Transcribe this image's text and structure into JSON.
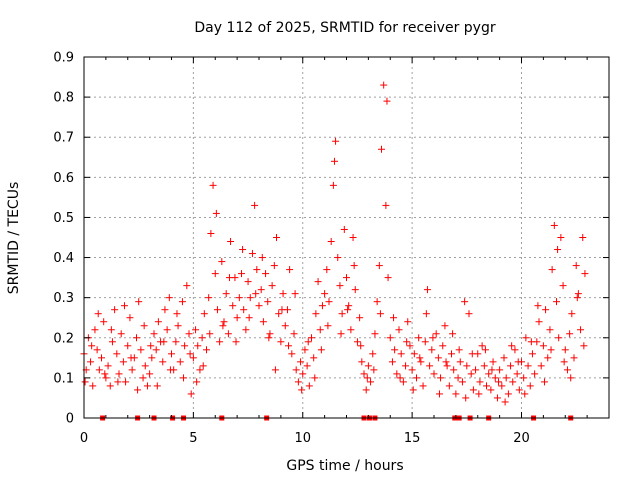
{
  "chart_data": {
    "type": "scatter",
    "title": "Day 112 of 2025, SRMTID for receiver pygr",
    "xlabel": "GPS time / hours",
    "ylabel": "SRMTID / TECUs",
    "xlim": [
      0,
      24
    ],
    "ylim": [
      0,
      0.9
    ],
    "xticks": [
      0,
      5,
      10,
      15,
      20
    ],
    "xtick_labels": [
      "0",
      "5",
      "10",
      "15",
      "20"
    ],
    "yticks": [
      0,
      0.1,
      0.2,
      0.3,
      0.4,
      0.5,
      0.6,
      0.7,
      0.8,
      0.9
    ],
    "ytick_labels": [
      "0",
      "0.1",
      "0.2",
      "0.3",
      "0.4",
      "0.5",
      "0.6",
      "0.7",
      "0.8",
      "0.9"
    ],
    "grid": true,
    "marker": "+",
    "color": "#ff0000",
    "series": [
      {
        "name": "SRMTID",
        "points": [
          [
            0.0,
            0.16
          ],
          [
            0.1,
            0.12
          ],
          [
            0.2,
            0.2
          ],
          [
            0.3,
            0.14
          ],
          [
            0.4,
            0.08
          ],
          [
            0.5,
            0.22
          ],
          [
            0.6,
            0.17
          ],
          [
            0.7,
            0.12
          ],
          [
            0.8,
            0.15
          ],
          [
            0.9,
            0.24
          ],
          [
            1.0,
            0.1
          ],
          [
            1.1,
            0.13
          ],
          [
            1.2,
            0.08
          ],
          [
            1.3,
            0.19
          ],
          [
            1.4,
            0.27
          ],
          [
            1.5,
            0.16
          ],
          [
            1.6,
            0.11
          ],
          [
            1.7,
            0.21
          ],
          [
            1.8,
            0.14
          ],
          [
            1.9,
            0.09
          ],
          [
            2.0,
            0.18
          ],
          [
            2.1,
            0.25
          ],
          [
            2.2,
            0.12
          ],
          [
            2.3,
            0.15
          ],
          [
            2.4,
            0.2
          ],
          [
            2.5,
            0.29
          ],
          [
            2.6,
            0.17
          ],
          [
            2.7,
            0.1
          ],
          [
            2.8,
            0.13
          ],
          [
            2.9,
            0.08
          ],
          [
            3.0,
            0.11
          ],
          [
            3.1,
            0.15
          ],
          [
            3.2,
            0.21
          ],
          [
            3.3,
            0.17
          ],
          [
            3.4,
            0.24
          ],
          [
            3.5,
            0.19
          ],
          [
            3.6,
            0.14
          ],
          [
            3.7,
            0.27
          ],
          [
            3.8,
            0.22
          ],
          [
            3.9,
            0.3
          ],
          [
            4.0,
            0.16
          ],
          [
            4.1,
            0.12
          ],
          [
            4.2,
            0.19
          ],
          [
            4.3,
            0.23
          ],
          [
            4.4,
            0.14
          ],
          [
            4.5,
            0.29
          ],
          [
            4.6,
            0.18
          ],
          [
            4.7,
            0.33
          ],
          [
            4.8,
            0.21
          ],
          [
            4.9,
            0.06
          ],
          [
            5.0,
            0.15
          ],
          [
            5.1,
            0.22
          ],
          [
            5.2,
            0.18
          ],
          [
            5.3,
            0.12
          ],
          [
            5.4,
            0.2
          ],
          [
            5.5,
            0.26
          ],
          [
            5.6,
            0.17
          ],
          [
            5.7,
            0.3
          ],
          [
            5.8,
            0.46
          ],
          [
            5.9,
            0.58
          ],
          [
            6.0,
            0.36
          ],
          [
            6.1,
            0.27
          ],
          [
            6.2,
            0.19
          ],
          [
            6.3,
            0.39
          ],
          [
            6.4,
            0.24
          ],
          [
            6.5,
            0.31
          ],
          [
            6.6,
            0.21
          ],
          [
            6.7,
            0.44
          ],
          [
            6.8,
            0.28
          ],
          [
            6.9,
            0.35
          ],
          [
            7.0,
            0.25
          ],
          [
            7.1,
            0.3
          ],
          [
            7.2,
            0.36
          ],
          [
            7.3,
            0.27
          ],
          [
            7.4,
            0.22
          ],
          [
            7.5,
            0.34
          ],
          [
            7.6,
            0.3
          ],
          [
            7.7,
            0.41
          ],
          [
            7.8,
            0.53
          ],
          [
            7.9,
            0.37
          ],
          [
            8.0,
            0.28
          ],
          [
            8.1,
            0.32
          ],
          [
            8.2,
            0.24
          ],
          [
            8.3,
            0.36
          ],
          [
            8.4,
            0.29
          ],
          [
            8.5,
            0.21
          ],
          [
            8.6,
            0.33
          ],
          [
            8.7,
            0.38
          ],
          [
            8.8,
            0.45
          ],
          [
            8.9,
            0.26
          ],
          [
            9.0,
            0.19
          ],
          [
            9.1,
            0.31
          ],
          [
            9.2,
            0.23
          ],
          [
            9.3,
            0.27
          ],
          [
            9.4,
            0.37
          ],
          [
            9.5,
            0.16
          ],
          [
            9.6,
            0.21
          ],
          [
            9.7,
            0.12
          ],
          [
            9.8,
            0.09
          ],
          [
            9.9,
            0.14
          ],
          [
            10.0,
            0.11
          ],
          [
            10.1,
            0.17
          ],
          [
            10.2,
            0.13
          ],
          [
            10.3,
            0.08
          ],
          [
            10.4,
            0.2
          ],
          [
            10.5,
            0.15
          ],
          [
            10.6,
            0.26
          ],
          [
            10.7,
            0.34
          ],
          [
            10.8,
            0.22
          ],
          [
            10.9,
            0.28
          ],
          [
            11.0,
            0.31
          ],
          [
            11.1,
            0.37
          ],
          [
            11.2,
            0.29
          ],
          [
            11.3,
            0.44
          ],
          [
            11.4,
            0.58
          ],
          [
            11.5,
            0.69
          ],
          [
            11.6,
            0.4
          ],
          [
            11.7,
            0.33
          ],
          [
            11.8,
            0.26
          ],
          [
            11.9,
            0.47
          ],
          [
            12.0,
            0.35
          ],
          [
            12.1,
            0.28
          ],
          [
            12.2,
            0.22
          ],
          [
            12.3,
            0.45
          ],
          [
            12.4,
            0.32
          ],
          [
            12.5,
            0.19
          ],
          [
            12.6,
            0.25
          ],
          [
            12.7,
            0.14
          ],
          [
            12.8,
            0.11
          ],
          [
            12.9,
            0.07
          ],
          [
            13.0,
            0.13
          ],
          [
            13.1,
            0.09
          ],
          [
            13.2,
            0.16
          ],
          [
            13.3,
            0.21
          ],
          [
            13.4,
            0.29
          ],
          [
            13.5,
            0.38
          ],
          [
            13.6,
            0.67
          ],
          [
            13.7,
            0.83
          ],
          [
            13.8,
            0.53
          ],
          [
            13.9,
            0.35
          ],
          [
            14.0,
            0.2
          ],
          [
            14.1,
            0.14
          ],
          [
            14.2,
            0.17
          ],
          [
            14.3,
            0.11
          ],
          [
            14.4,
            0.22
          ],
          [
            14.5,
            0.16
          ],
          [
            14.6,
            0.09
          ],
          [
            14.7,
            0.13
          ],
          [
            14.8,
            0.24
          ],
          [
            14.9,
            0.18
          ],
          [
            15.0,
            0.12
          ],
          [
            15.1,
            0.16
          ],
          [
            15.2,
            0.1
          ],
          [
            15.3,
            0.2
          ],
          [
            15.4,
            0.14
          ],
          [
            15.5,
            0.08
          ],
          [
            15.6,
            0.19
          ],
          [
            15.7,
            0.32
          ],
          [
            15.8,
            0.13
          ],
          [
            15.9,
            0.17
          ],
          [
            16.0,
            0.11
          ],
          [
            16.1,
            0.21
          ],
          [
            16.2,
            0.15
          ],
          [
            16.3,
            0.1
          ],
          [
            16.4,
            0.18
          ],
          [
            16.5,
            0.23
          ],
          [
            16.6,
            0.13
          ],
          [
            16.7,
            0.08
          ],
          [
            16.8,
            0.16
          ],
          [
            16.9,
            0.12
          ],
          [
            17.0,
            0.06
          ],
          [
            17.1,
            0.1
          ],
          [
            17.2,
            0.14
          ],
          [
            17.3,
            0.09
          ],
          [
            17.4,
            0.29
          ],
          [
            17.5,
            0.13
          ],
          [
            17.6,
            0.26
          ],
          [
            17.7,
            0.11
          ],
          [
            17.8,
            0.07
          ],
          [
            17.9,
            0.12
          ],
          [
            18.0,
            0.16
          ],
          [
            18.1,
            0.09
          ],
          [
            18.2,
            0.18
          ],
          [
            18.3,
            0.13
          ],
          [
            18.4,
            0.08
          ],
          [
            18.5,
            0.11
          ],
          [
            18.6,
            0.07
          ],
          [
            18.7,
            0.14
          ],
          [
            18.8,
            0.1
          ],
          [
            18.9,
            0.05
          ],
          [
            19.0,
            0.12
          ],
          [
            19.1,
            0.08
          ],
          [
            19.2,
            0.15
          ],
          [
            19.3,
            0.1
          ],
          [
            19.4,
            0.06
          ],
          [
            19.5,
            0.13
          ],
          [
            19.6,
            0.09
          ],
          [
            19.7,
            0.17
          ],
          [
            19.8,
            0.11
          ],
          [
            19.9,
            0.07
          ],
          [
            20.0,
            0.14
          ],
          [
            20.1,
            0.1
          ],
          [
            20.2,
            0.2
          ],
          [
            20.3,
            0.13
          ],
          [
            20.4,
            0.08
          ],
          [
            20.5,
            0.16
          ],
          [
            20.6,
            0.11
          ],
          [
            20.7,
            0.19
          ],
          [
            20.8,
            0.24
          ],
          [
            20.9,
            0.13
          ],
          [
            21.0,
            0.18
          ],
          [
            21.1,
            0.27
          ],
          [
            21.2,
            0.15
          ],
          [
            21.3,
            0.22
          ],
          [
            21.4,
            0.37
          ],
          [
            21.5,
            0.48
          ],
          [
            21.6,
            0.29
          ],
          [
            21.7,
            0.2
          ],
          [
            21.8,
            0.45
          ],
          [
            21.9,
            0.33
          ],
          [
            22.0,
            0.17
          ],
          [
            22.1,
            0.12
          ],
          [
            22.2,
            0.21
          ],
          [
            22.3,
            0.26
          ],
          [
            22.4,
            0.15
          ],
          [
            22.5,
            0.38
          ],
          [
            22.6,
            0.31
          ],
          [
            22.7,
            0.22
          ],
          [
            22.8,
            0.45
          ],
          [
            22.9,
            0.36
          ],
          [
            0.05,
            0.09
          ],
          [
            0.35,
            0.18
          ],
          [
            0.65,
            0.26
          ],
          [
            0.95,
            0.11
          ],
          [
            1.25,
            0.22
          ],
          [
            1.55,
            0.09
          ],
          [
            1.85,
            0.28
          ],
          [
            2.15,
            0.15
          ],
          [
            2.45,
            0.07
          ],
          [
            2.75,
            0.23
          ],
          [
            3.05,
            0.18
          ],
          [
            3.35,
            0.08
          ],
          [
            3.65,
            0.19
          ],
          [
            3.95,
            0.12
          ],
          [
            4.25,
            0.26
          ],
          [
            4.55,
            0.1
          ],
          [
            4.85,
            0.16
          ],
          [
            5.15,
            0.09
          ],
          [
            5.45,
            0.13
          ],
          [
            5.75,
            0.21
          ],
          [
            6.05,
            0.51
          ],
          [
            6.35,
            0.23
          ],
          [
            6.65,
            0.35
          ],
          [
            6.95,
            0.19
          ],
          [
            7.25,
            0.42
          ],
          [
            7.55,
            0.25
          ],
          [
            7.85,
            0.31
          ],
          [
            8.15,
            0.4
          ],
          [
            8.45,
            0.2
          ],
          [
            8.75,
            0.12
          ],
          [
            9.05,
            0.27
          ],
          [
            9.35,
            0.18
          ],
          [
            9.65,
            0.31
          ],
          [
            9.95,
            0.07
          ],
          [
            10.25,
            0.19
          ],
          [
            10.55,
            0.1
          ],
          [
            10.85,
            0.17
          ],
          [
            11.15,
            0.23
          ],
          [
            11.45,
            0.64
          ],
          [
            11.75,
            0.21
          ],
          [
            12.05,
            0.27
          ],
          [
            12.35,
            0.38
          ],
          [
            12.65,
            0.18
          ],
          [
            12.95,
            0.1
          ],
          [
            13.25,
            0.12
          ],
          [
            13.55,
            0.26
          ],
          [
            13.85,
            0.79
          ],
          [
            14.15,
            0.25
          ],
          [
            14.45,
            0.1
          ],
          [
            14.75,
            0.19
          ],
          [
            15.05,
            0.07
          ],
          [
            15.35,
            0.15
          ],
          [
            15.65,
            0.26
          ],
          [
            15.95,
            0.2
          ],
          [
            16.25,
            0.06
          ],
          [
            16.55,
            0.14
          ],
          [
            16.85,
            0.21
          ],
          [
            17.15,
            0.17
          ],
          [
            17.45,
            0.05
          ],
          [
            17.75,
            0.16
          ],
          [
            18.05,
            0.06
          ],
          [
            18.35,
            0.17
          ],
          [
            18.65,
            0.12
          ],
          [
            18.95,
            0.09
          ],
          [
            19.25,
            0.04
          ],
          [
            19.55,
            0.18
          ],
          [
            19.85,
            0.14
          ],
          [
            20.15,
            0.06
          ],
          [
            20.45,
            0.19
          ],
          [
            20.75,
            0.28
          ],
          [
            21.05,
            0.09
          ],
          [
            21.35,
            0.17
          ],
          [
            21.65,
            0.42
          ],
          [
            21.95,
            0.14
          ],
          [
            22.25,
            0.1
          ],
          [
            22.55,
            0.3
          ],
          [
            22.85,
            0.18
          ]
        ]
      }
    ],
    "gap_markers_x": [
      0.85,
      2.45,
      3.2,
      4.05,
      4.55,
      6.3,
      8.35,
      12.8,
      13.05,
      13.3,
      16.95,
      17.15,
      17.65,
      18.5,
      20.55,
      22.25
    ]
  }
}
